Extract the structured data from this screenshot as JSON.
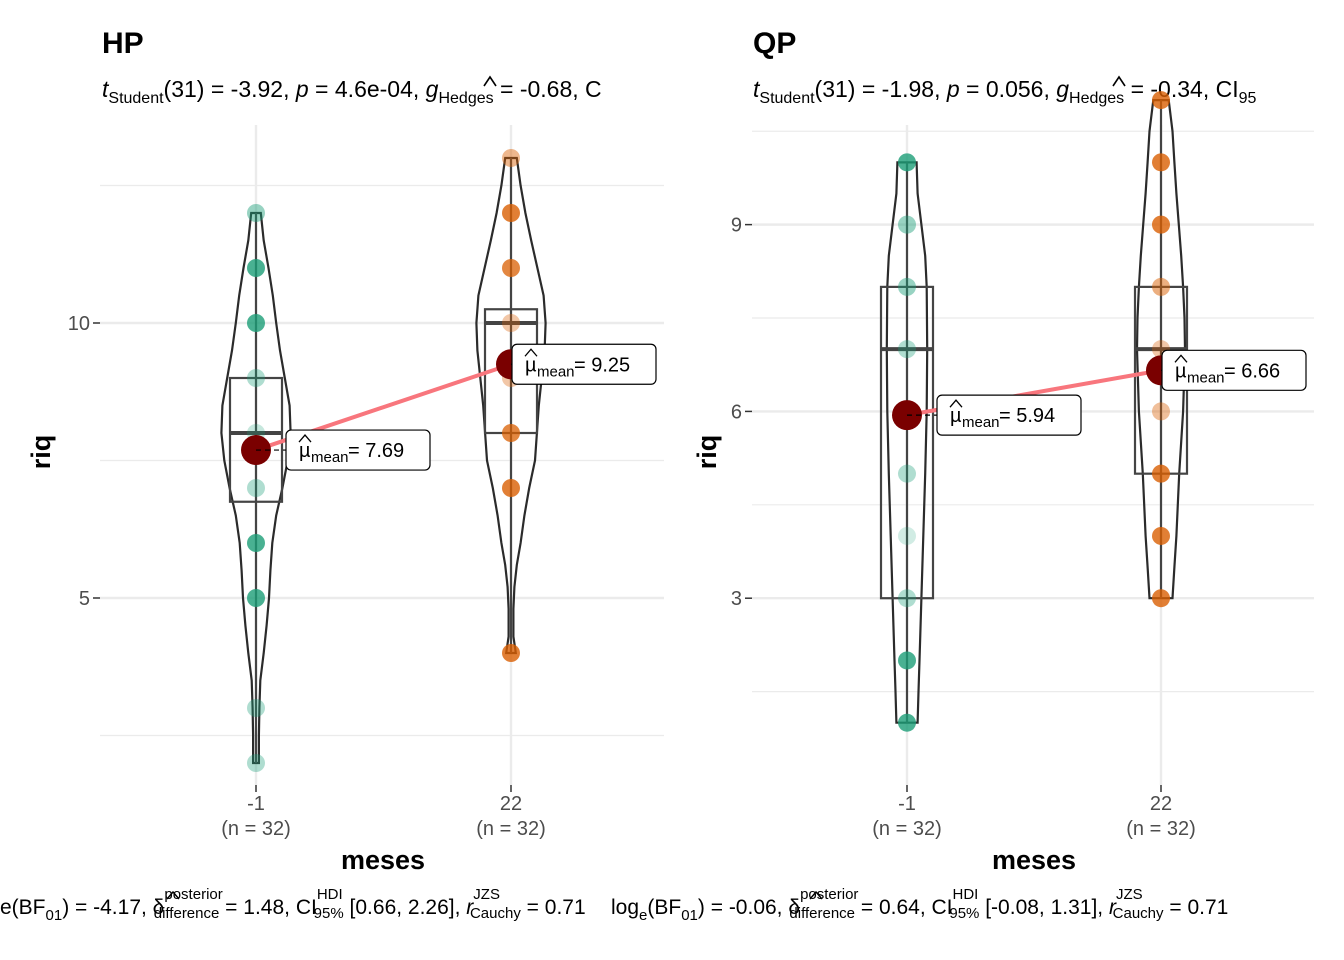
{
  "colors": {
    "group1": "#1B9E77",
    "group2": "#D95F02",
    "mean_point": "#7A0000",
    "mean_line": "#F8767D",
    "grid": "#EBEBEB",
    "outline": "#2B2B2B"
  },
  "chart_data": [
    {
      "type": "violin-box-scatter",
      "title": "HP",
      "subtitle": {
        "t_sub": "Student",
        "t_rest": "(31) = -3.92, ",
        "p_label": "p",
        "p_rest": " = 4.6e-04, ",
        "g_sub": "Hedges",
        "g_rest": " = -0.68, C"
      },
      "xlabel": "meses",
      "ylabel": "riq",
      "ylim": [
        1.6,
        13.6
      ],
      "yticks": [
        5,
        10
      ],
      "groups": [
        {
          "name": "-1",
          "n_label": "(n = 32)",
          "color": "#1B9E77",
          "points": [
            2,
            3,
            5,
            6,
            7,
            8,
            9,
            10,
            11,
            12
          ],
          "point_alpha": [
            0.35,
            0.35,
            0.8,
            0.8,
            0.35,
            0.25,
            0.35,
            0.8,
            0.8,
            0.45
          ],
          "box": {
            "q1": 6.75,
            "median": 8,
            "q3": 9
          },
          "violin": {
            "min": 2,
            "max": 12,
            "profile": [
              [
                2,
                0.06
              ],
              [
                2.5,
                0.06
              ],
              [
                3,
                0.07
              ],
              [
                3.5,
                0.09
              ],
              [
                4,
                0.16
              ],
              [
                4.5,
                0.22
              ],
              [
                5,
                0.27
              ],
              [
                5.5,
                0.3
              ],
              [
                6,
                0.34
              ],
              [
                6.5,
                0.42
              ],
              [
                7,
                0.55
              ],
              [
                7.5,
                0.66
              ],
              [
                8,
                0.72
              ],
              [
                8.5,
                0.7
              ],
              [
                9,
                0.6
              ],
              [
                9.5,
                0.5
              ],
              [
                10,
                0.42
              ],
              [
                10.5,
                0.35
              ],
              [
                11,
                0.26
              ],
              [
                11.5,
                0.16
              ],
              [
                12,
                0.1
              ]
            ]
          },
          "mean": 7.69,
          "mean_label": "= 7.69"
        },
        {
          "name": "22",
          "n_label": "(n = 32)",
          "color": "#D95F02",
          "points": [
            4,
            7,
            8,
            9,
            10,
            11,
            12,
            13
          ],
          "point_alpha": [
            0.8,
            0.8,
            0.75,
            0.35,
            0.35,
            0.75,
            0.8,
            0.45
          ],
          "box": {
            "q1": 8,
            "median": 10,
            "q3": 10.25
          },
          "violin": {
            "min": 4,
            "max": 13,
            "profile": [
              [
                4,
                0.1
              ],
              [
                4.3,
                0.05
              ],
              [
                4.8,
                0.05
              ],
              [
                5.2,
                0.07
              ],
              [
                5.6,
                0.12
              ],
              [
                6,
                0.2
              ],
              [
                6.5,
                0.28
              ],
              [
                7,
                0.38
              ],
              [
                7.5,
                0.5
              ],
              [
                8,
                0.54
              ],
              [
                8.5,
                0.58
              ],
              [
                9,
                0.64
              ],
              [
                9.5,
                0.7
              ],
              [
                10,
                0.72
              ],
              [
                10.5,
                0.68
              ],
              [
                11,
                0.55
              ],
              [
                11.5,
                0.42
              ],
              [
                12,
                0.3
              ],
              [
                12.5,
                0.2
              ],
              [
                13,
                0.12
              ]
            ]
          },
          "mean": 9.25,
          "mean_label": "= 9.25"
        }
      ],
      "caption": {
        "part1": "e(BF",
        "sub01": "01",
        "part2": ") = -4.17, ",
        "delta_sup": "posterior",
        "delta_sub": "difference",
        "part3": " = 1.48, CI",
        "ci_sup": "HDI",
        "ci_sub": "95%",
        "part4": " [0.66, 2.26], ",
        "r_label": "r",
        "r_sup": "JZS",
        "r_sub": "Cauchy",
        "part5": " = 0.71"
      }
    },
    {
      "type": "violin-box-scatter",
      "title": "QP",
      "subtitle": {
        "t_sub": "Student",
        "t_rest": "(31) = -1.98, ",
        "p_label": "p",
        "p_rest": " = 0.056, ",
        "g_sub": "Hedges",
        "g_rest": " = -0.34, CI",
        "ci_sub": "95"
      },
      "xlabel": "meses",
      "ylabel": "riq",
      "ylim": [
        0,
        10.6
      ],
      "yticks": [
        3,
        6,
        9
      ],
      "groups": [
        {
          "name": "-1",
          "n_label": "(n = 32)",
          "color": "#1B9E77",
          "points": [
            1,
            2,
            3,
            4,
            5,
            6,
            7,
            8,
            9,
            10
          ],
          "point_alpha": [
            0.8,
            0.8,
            0.35,
            0.2,
            0.35,
            0.8,
            0.35,
            0.45,
            0.45,
            0.8
          ],
          "box": {
            "q1": 3,
            "median": 7,
            "q3": 8
          },
          "violin": {
            "min": 1,
            "max": 10,
            "profile": [
              [
                1,
                0.22
              ],
              [
                1.5,
                0.24
              ],
              [
                2,
                0.26
              ],
              [
                3,
                0.3
              ],
              [
                4,
                0.34
              ],
              [
                5,
                0.38
              ],
              [
                6,
                0.41
              ],
              [
                7,
                0.42
              ],
              [
                8,
                0.41
              ],
              [
                8.5,
                0.38
              ],
              [
                9,
                0.3
              ],
              [
                9.5,
                0.22
              ],
              [
                10,
                0.2
              ]
            ]
          },
          "mean": 5.94,
          "mean_label": "= 5.94"
        },
        {
          "name": "22",
          "n_label": "(n = 32)",
          "color": "#D95F02",
          "points": [
            3,
            4,
            5,
            6,
            7,
            8,
            9,
            10,
            11
          ],
          "point_alpha": [
            0.8,
            0.8,
            0.8,
            0.4,
            0.35,
            0.5,
            0.8,
            0.8,
            0.8
          ],
          "box": {
            "q1": 5,
            "median": 7,
            "q3": 8
          },
          "violin": {
            "min": 3,
            "max": 11,
            "profile": [
              [
                3,
                0.24
              ],
              [
                3.5,
                0.28
              ],
              [
                4,
                0.32
              ],
              [
                5,
                0.38
              ],
              [
                6,
                0.46
              ],
              [
                7,
                0.5
              ],
              [
                7.5,
                0.49
              ],
              [
                8,
                0.46
              ],
              [
                8.5,
                0.42
              ],
              [
                9,
                0.37
              ],
              [
                9.5,
                0.32
              ],
              [
                10,
                0.28
              ],
              [
                10.5,
                0.24
              ],
              [
                11,
                0.16
              ]
            ]
          },
          "mean": 6.66,
          "mean_label": "= 6.66"
        }
      ],
      "caption": {
        "part1": "log",
        "sub_e": "e",
        "part1b": "(BF",
        "sub01": "01",
        "part2": ") = -0.06, ",
        "delta_sup": "posterior",
        "delta_sub": "difference",
        "part3": " = 0.64, CI",
        "ci_sup": "HDI",
        "ci_sub": "95%",
        "part4": " [-0.08, 1.31], ",
        "r_label": "r",
        "r_sup": "JZS",
        "r_sub": "Cauchy",
        "part5": " = 0.71"
      }
    }
  ]
}
